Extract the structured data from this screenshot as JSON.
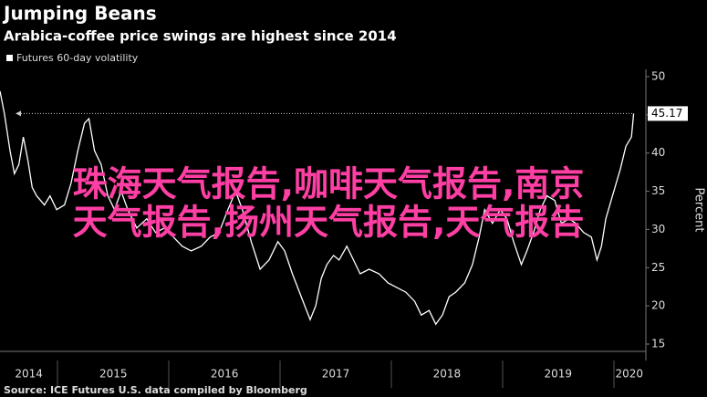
{
  "chart_data": {
    "type": "line",
    "title": "Jumping Beans",
    "subtitle": "Arabica-coffee price swings are highest since 2014",
    "source": "Source: ICE Futures U.S. data compiled by Bloomberg",
    "y_axis_label": "Percent",
    "overlay_text": [
      "珠海天气报告,咖啡天气报告,南京",
      "天气报告,扬州天气报告,天气报告"
    ],
    "x": [
      2014.48,
      2014.52,
      2014.57,
      2014.61,
      2014.65,
      2014.69,
      2014.73,
      2014.77,
      2014.81,
      2014.88,
      2014.93,
      2014.99,
      2015.06,
      2015.12,
      2015.18,
      2015.24,
      2015.28,
      2015.33,
      2015.39,
      2015.45,
      2015.51,
      2015.57,
      2015.63,
      2015.71,
      2015.8,
      2015.88,
      2015.96,
      2016.04,
      2016.12,
      2016.2,
      2016.29,
      2016.37,
      2016.45,
      2016.53,
      2016.6,
      2016.66,
      2016.74,
      2016.82,
      2016.9,
      2016.98,
      2017.04,
      2017.11,
      2017.19,
      2017.27,
      2017.32,
      2017.37,
      2017.42,
      2017.48,
      2017.53,
      2017.6,
      2017.66,
      2017.72,
      2017.8,
      2017.89,
      2017.97,
      2018.05,
      2018.13,
      2018.21,
      2018.27,
      2018.34,
      2018.4,
      2018.46,
      2018.52,
      2018.58,
      2018.66,
      2018.73,
      2018.79,
      2018.84,
      2018.91,
      2018.98,
      2019.04,
      2019.1,
      2019.17,
      2019.22,
      2019.28,
      2019.34,
      2019.4,
      2019.47,
      2019.53,
      2019.6,
      2019.66,
      2019.73,
      2019.8,
      2019.85,
      2019.89,
      2019.93,
      2019.99,
      2020.06,
      2020.11,
      2020.16,
      2020.18
    ],
    "series": [
      {
        "name": "Futures 60-day volatility",
        "color": "#ffffff",
        "values": [
          48.1,
          45.1,
          40.3,
          37.3,
          38.5,
          42.1,
          39.1,
          35.5,
          34.4,
          33.2,
          34.4,
          32.6,
          33.2,
          36.1,
          40.3,
          43.9,
          44.5,
          40.3,
          38.5,
          34.4,
          32.6,
          35,
          32.6,
          30.2,
          31.4,
          29.6,
          30.2,
          29,
          27.8,
          27.2,
          27.8,
          29,
          29.6,
          32.6,
          35,
          32.6,
          28.4,
          24.8,
          26,
          28.4,
          27.2,
          24.2,
          21.2,
          18.2,
          20,
          23.6,
          25.4,
          26.6,
          26,
          27.8,
          26,
          24.2,
          24.8,
          24.2,
          23,
          22.4,
          21.8,
          20.6,
          18.8,
          19.4,
          17.6,
          18.8,
          21.2,
          21.8,
          23,
          25.4,
          29,
          32.6,
          30.8,
          32.6,
          31.4,
          28.4,
          25.4,
          27.2,
          29.6,
          32.6,
          34.4,
          33.8,
          30.8,
          31.4,
          30.8,
          29.6,
          29,
          26,
          27.8,
          31.4,
          34.4,
          37.9,
          40.9,
          42.1,
          45.17
        ]
      }
    ],
    "xlim": [
      2014.48,
      2020.29
    ],
    "xticks": [
      {
        "value": 2014.74,
        "label": "2014"
      },
      {
        "value": 2015.5,
        "label": "2015"
      },
      {
        "value": 2016.5,
        "label": "2016"
      },
      {
        "value": 2017.5,
        "label": "2017"
      },
      {
        "value": 2018.5,
        "label": "2018"
      },
      {
        "value": 2019.5,
        "label": "2019"
      },
      {
        "value": 2020.14,
        "label": "2020"
      }
    ],
    "ylim": [
      15,
      50
    ],
    "yticks": [
      15,
      20,
      25,
      30,
      35,
      40,
      45,
      50
    ],
    "grid": false
  }
}
